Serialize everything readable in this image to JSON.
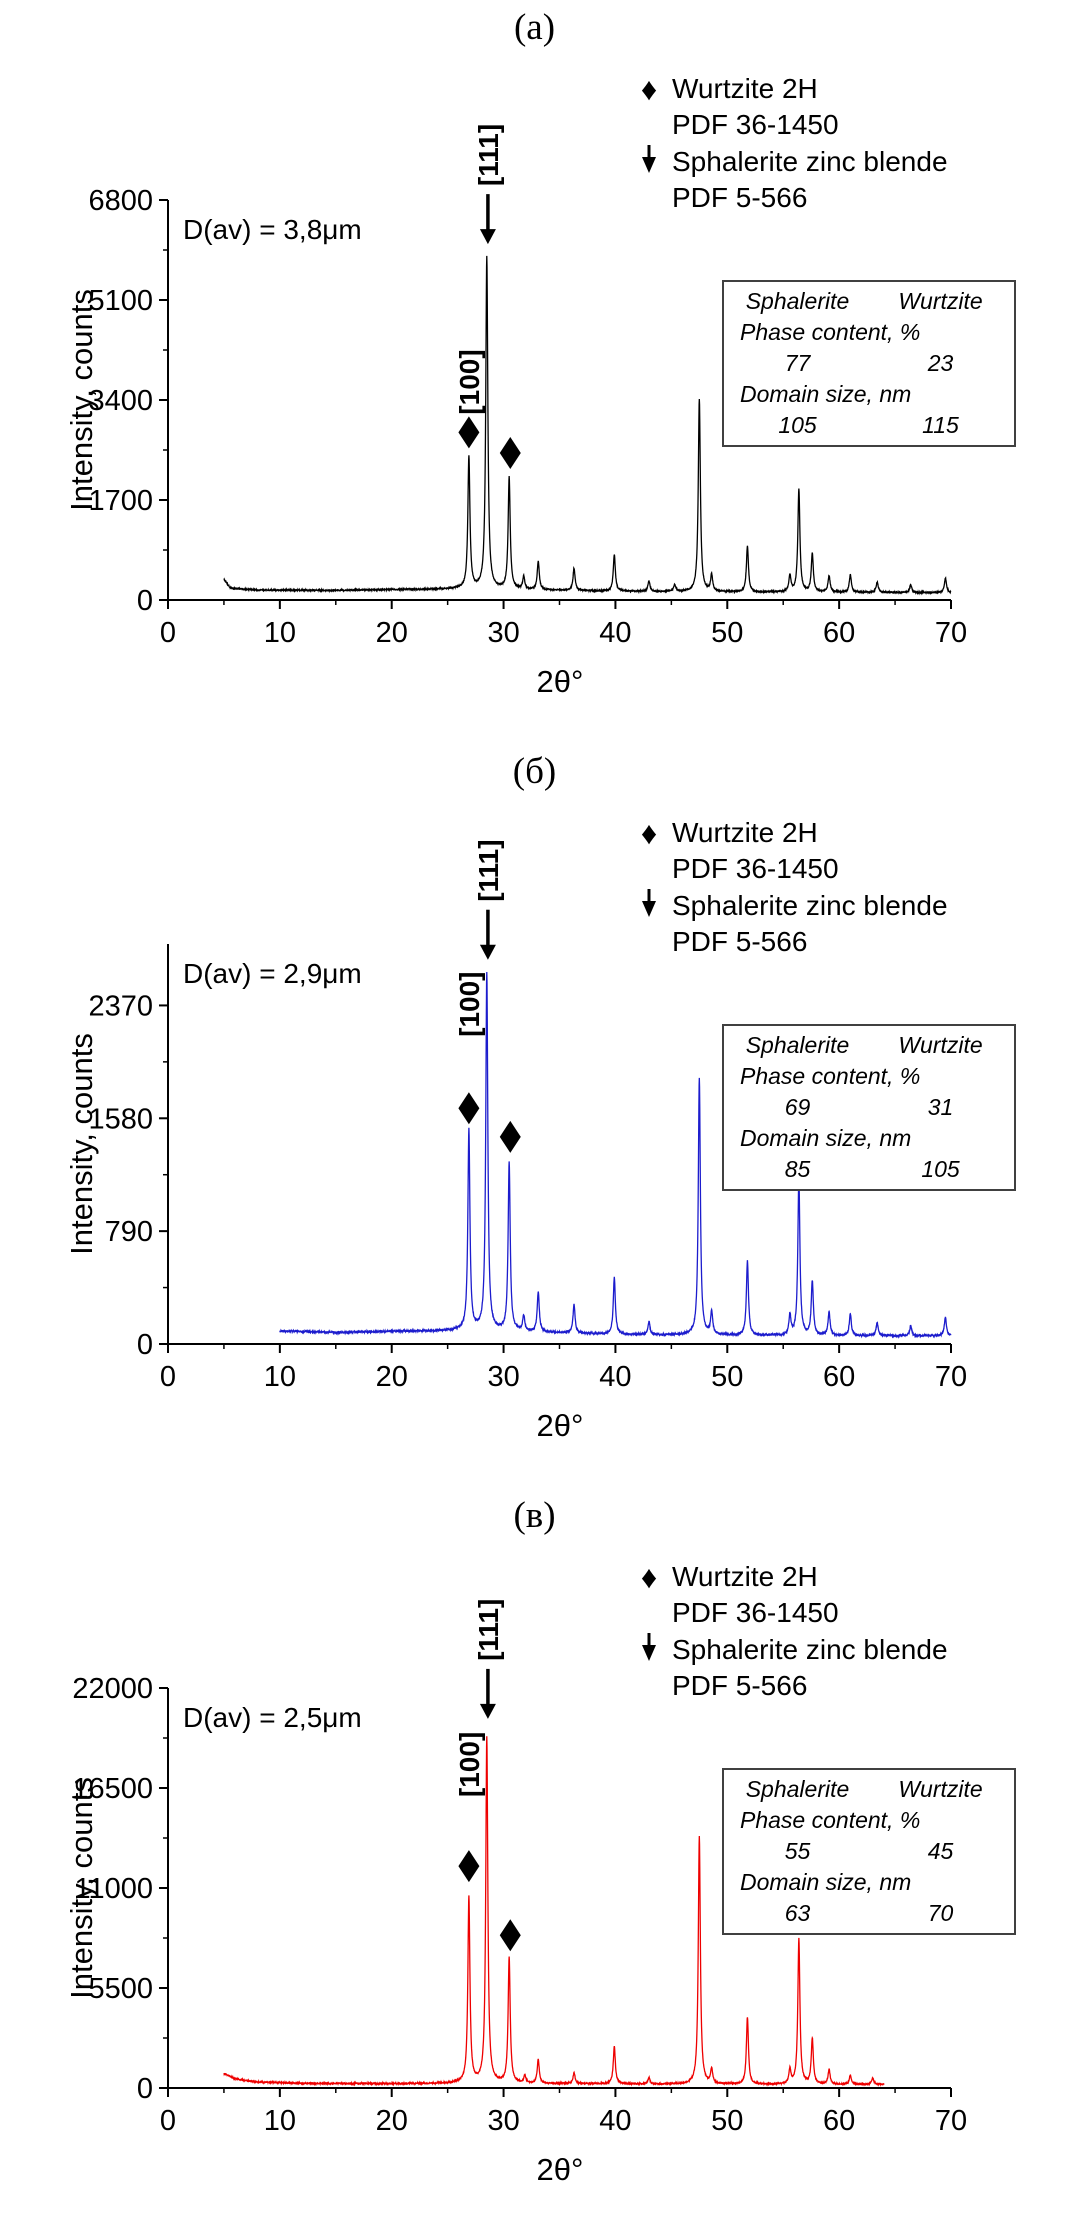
{
  "axes": {
    "xlabel": "2θ°",
    "ylabel": "Intensity, counts"
  },
  "icons": {
    "diamond_glyph": "♦",
    "down_arrow": "down-arrow"
  },
  "legend": {
    "wurtzite_label": "Wurtzite 2H",
    "wurtzite_pdf": "PDF 36-1450",
    "sphalerite_label": "Sphalerite zinc blende",
    "sphalerite_pdf": "PDF 5-566"
  },
  "table_headers": {
    "col1": "Sphalerite",
    "col2": "Wurtzite",
    "phase_row": "Phase content, %",
    "domain_row": "Domain size, nm"
  },
  "panels": [
    {
      "title": "(а)",
      "d_label": "D(av) = 3,8μm",
      "table": {
        "phase_sphalerite": "77",
        "phase_wurtzite": "23",
        "domain_sphalerite": "105",
        "domain_wurtzite": "115"
      }
    },
    {
      "title": "(б)",
      "d_label": "D(av) = 2,9μm",
      "table": {
        "phase_sphalerite": "69",
        "phase_wurtzite": "31",
        "domain_sphalerite": "85",
        "domain_wurtzite": "105"
      }
    },
    {
      "title": "(в)",
      "d_label": "D(av) = 2,5μm",
      "table": {
        "phase_sphalerite": "55",
        "phase_wurtzite": "45",
        "domain_sphalerite": "63",
        "domain_wurtzite": "70"
      }
    }
  ],
  "chart_data": [
    {
      "type": "line",
      "title": "(а)",
      "xlabel": "2θ°",
      "ylabel": "Intensity, counts",
      "legend_entries": [
        "Wurtzite 2H PDF 36-1450",
        "Sphalerite zinc blende PDF 5-566"
      ],
      "color": "#000000",
      "xlim": [
        0,
        70
      ],
      "ylim": [
        0,
        6800
      ],
      "xticks": [
        0,
        10,
        20,
        30,
        40,
        50,
        60,
        70
      ],
      "yticks": [
        0,
        1700,
        3400,
        5100,
        6800
      ],
      "x_start": 5,
      "x_end": 70,
      "noise": 22,
      "baseline": [
        [
          5,
          350
        ],
        [
          5.6,
          200
        ],
        [
          8,
          170
        ],
        [
          15,
          165
        ],
        [
          26,
          195
        ],
        [
          32,
          180
        ],
        [
          40,
          150
        ],
        [
          55,
          135
        ],
        [
          70,
          125
        ]
      ],
      "peaks": [
        [
          26.9,
          2250
        ],
        [
          28.5,
          5650
        ],
        [
          30.5,
          1900
        ],
        [
          31.8,
          220
        ],
        [
          33.1,
          480
        ],
        [
          36.3,
          380
        ],
        [
          39.9,
          620
        ],
        [
          43.0,
          180
        ],
        [
          45.3,
          120
        ],
        [
          47.5,
          3280
        ],
        [
          48.6,
          280
        ],
        [
          51.8,
          780
        ],
        [
          55.6,
          280
        ],
        [
          56.4,
          1750
        ],
        [
          57.6,
          650
        ],
        [
          59.1,
          280
        ],
        [
          61.0,
          300
        ],
        [
          63.4,
          180
        ],
        [
          66.4,
          130
        ],
        [
          69.5,
          250
        ]
      ],
      "annotations": {
        "d_label": "D(av) = 3,8μm",
        "label_100": {
          "text": "[100]",
          "x": 26.9,
          "y_bottom": 3150
        },
        "label_111": {
          "text": "[111]",
          "x": 28.6
        },
        "arrow_tip_y": 6050,
        "markers": [
          {
            "x": 26.9,
            "y": 2850
          },
          {
            "x": 30.6,
            "y": 2500
          }
        ]
      }
    },
    {
      "type": "line",
      "title": "(б)",
      "xlabel": "2θ°",
      "ylabel": "Intensity, counts",
      "legend_entries": [
        "Wurtzite 2H PDF 36-1450",
        "Sphalerite zinc blende PDF 5-566"
      ],
      "color": "#1c1ccd",
      "xlim": [
        0,
        70
      ],
      "ylim": [
        0,
        2800
      ],
      "xticks": [
        0,
        10,
        20,
        30,
        40,
        50,
        60,
        70
      ],
      "yticks": [
        0,
        790,
        1580,
        2370
      ],
      "x_start": 10,
      "x_end": 70,
      "noise": 13,
      "baseline": [
        [
          10,
          92
        ],
        [
          15,
          82
        ],
        [
          26,
          98
        ],
        [
          32,
          88
        ],
        [
          40,
          68
        ],
        [
          55,
          60
        ],
        [
          70,
          58
        ]
      ],
      "peaks": [
        [
          26.9,
          1400
        ],
        [
          28.5,
          2500
        ],
        [
          30.5,
          1180
        ],
        [
          31.8,
          110
        ],
        [
          33.1,
          280
        ],
        [
          36.3,
          200
        ],
        [
          39.9,
          400
        ],
        [
          43.0,
          90
        ],
        [
          47.5,
          1800
        ],
        [
          48.6,
          160
        ],
        [
          51.8,
          520
        ],
        [
          55.6,
          140
        ],
        [
          56.4,
          1100
        ],
        [
          57.6,
          380
        ],
        [
          59.1,
          160
        ],
        [
          61.0,
          150
        ],
        [
          63.4,
          90
        ],
        [
          66.4,
          70
        ],
        [
          69.5,
          130
        ]
      ],
      "annotations": {
        "d_label": "D(av) = 2,9μm",
        "label_100": {
          "text": "[100]",
          "x": 26.9,
          "y_bottom": 2150
        },
        "label_111": {
          "text": "[111]",
          "x": 28.6
        },
        "arrow_tip_y": 2690,
        "markers": [
          {
            "x": 26.9,
            "y": 1650
          },
          {
            "x": 30.6,
            "y": 1450
          }
        ]
      }
    },
    {
      "type": "line",
      "title": "(в)",
      "xlabel": "2θ°",
      "ylabel": "Intensity, counts",
      "legend_entries": [
        "Wurtzite 2H PDF 36-1450",
        "Sphalerite zinc blende PDF 5-566"
      ],
      "color": "#ee0000",
      "xlim": [
        0,
        70
      ],
      "ylim": [
        0,
        22000
      ],
      "xticks": [
        0,
        10,
        20,
        30,
        40,
        50,
        60,
        70
      ],
      "yticks": [
        0,
        5500,
        11000,
        16500,
        22000
      ],
      "x_start": 5,
      "x_end": 64,
      "noise": 70,
      "baseline": [
        [
          5,
          800
        ],
        [
          6,
          500
        ],
        [
          8,
          330
        ],
        [
          12,
          260
        ],
        [
          20,
          240
        ],
        [
          26,
          290
        ],
        [
          32,
          260
        ],
        [
          45,
          220
        ],
        [
          64,
          200
        ]
      ],
      "peaks": [
        [
          26.9,
          10200
        ],
        [
          28.5,
          19000
        ],
        [
          30.5,
          6900
        ],
        [
          31.9,
          450
        ],
        [
          33.1,
          1300
        ],
        [
          36.3,
          600
        ],
        [
          39.9,
          2050
        ],
        [
          43.0,
          350
        ],
        [
          47.5,
          13600
        ],
        [
          48.6,
          800
        ],
        [
          51.8,
          3700
        ],
        [
          55.6,
          800
        ],
        [
          56.4,
          8000
        ],
        [
          57.6,
          2500
        ],
        [
          59.1,
          800
        ],
        [
          61.0,
          500
        ],
        [
          63.0,
          350
        ]
      ],
      "annotations": {
        "d_label": "D(av) = 2,5μm",
        "label_100": {
          "text": "[100]",
          "x": 26.9,
          "y_bottom": 16000
        },
        "label_111": {
          "text": "[111]",
          "x": 28.6
        },
        "arrow_tip_y": 20300,
        "markers": [
          {
            "x": 26.9,
            "y": 12200
          },
          {
            "x": 30.6,
            "y": 8400
          }
        ]
      }
    }
  ]
}
